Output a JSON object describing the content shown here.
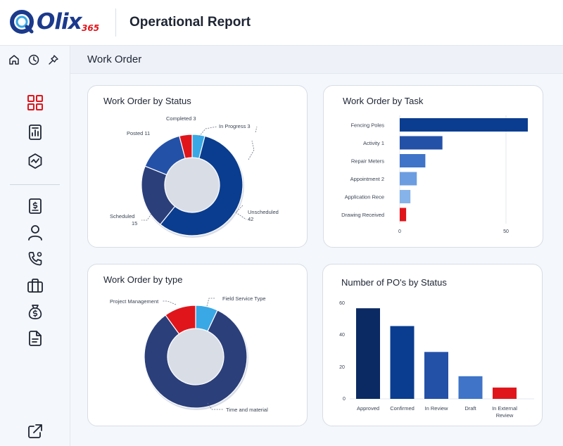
{
  "header": {
    "logo_text": "Olix",
    "logo_sub": "365",
    "title": "Operational Report"
  },
  "sidebar": {
    "top_icons": [
      "home-icon",
      "clock-icon",
      "pin-icon"
    ],
    "items": [
      "dashboard-icon",
      "report-icon",
      "analytics-icon",
      "invoice-icon",
      "user-icon",
      "phone-icon",
      "briefcase-icon",
      "money-bag-icon",
      "document-icon"
    ],
    "bottom_icon": "external-link-icon",
    "active_color": "#e0151c"
  },
  "breadcrumb": "Work Order",
  "colors": {
    "dark_navy": "#0b2a63",
    "navy": "#0a3d8f",
    "blue": "#2451a8",
    "mid_blue": "#3f74c8",
    "light_blue": "#6b9de0",
    "sky": "#3aa8e5",
    "red": "#e0151c",
    "slate": "#2b3f7a"
  },
  "chart_data": [
    {
      "type": "pie",
      "variant": "donut",
      "title": "Work Order by Status",
      "slices": [
        {
          "label": "In Progress",
          "value": 3
        },
        {
          "label": "Unscheduled",
          "value": 42
        },
        {
          "label": "Scheduled",
          "value": 15
        },
        {
          "label": "Posted",
          "value": 11
        },
        {
          "label": "Completed",
          "value": 3
        }
      ],
      "labels_text": {
        "in_progress": "In Progress 3",
        "unscheduled": "Unscheduled",
        "unscheduled_value": "42",
        "scheduled": "Scheduled",
        "scheduled_value": "15",
        "posted": "Posted 11",
        "completed": "Completed 3"
      }
    },
    {
      "type": "bar",
      "orientation": "horizontal",
      "title": "Work Order by Task",
      "categories": [
        "Fencing Poles",
        "Activity 1",
        "Repair Meters",
        "Appointment 2",
        "Application Rece",
        "Drawing Received"
      ],
      "values": [
        60,
        20,
        12,
        8,
        5,
        3
      ],
      "xlim": [
        0,
        60
      ],
      "xticks": [
        "0",
        "50"
      ]
    },
    {
      "type": "pie",
      "variant": "donut",
      "title": "Work Order by type",
      "slices": [
        {
          "label": "Field Service Type",
          "value": 7
        },
        {
          "label": "Time and material",
          "value": 83
        },
        {
          "label": "Project Management",
          "value": 10
        }
      ]
    },
    {
      "type": "bar",
      "title": "Number of PO's by Status",
      "categories": [
        "Approved",
        "Confirmed",
        "In Review",
        "Draft",
        "In External Review"
      ],
      "category_lines": [
        [
          "Approved"
        ],
        [
          "Confirmed"
        ],
        [
          "In Review"
        ],
        [
          "Draft"
        ],
        [
          "In External",
          "Review"
        ]
      ],
      "values": [
        56,
        45,
        29,
        14,
        7
      ],
      "ylim": [
        0,
        60
      ],
      "yticks": [
        "0",
        "20",
        "40",
        "60"
      ]
    }
  ]
}
